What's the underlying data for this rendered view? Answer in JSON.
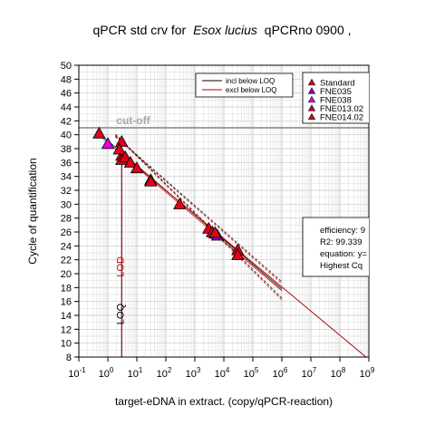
{
  "chart_data": {
    "type": "scatter",
    "title_plain": "qPCR std crv for",
    "title_species": "Esox lucius",
    "title_suffix": "qPCRno 0900 ,",
    "xlabel": "target-eDNA in extract. (copy/qPCR-reaction)",
    "ylabel": "Cycle of quantification",
    "x_scale": "log10",
    "xlim": [
      0.1,
      1000000000
    ],
    "ylim": [
      8,
      50
    ],
    "x_ticks": [
      {
        "base": "10",
        "exp": "-1"
      },
      {
        "base": "10",
        "exp": "0"
      },
      {
        "base": "10",
        "exp": "1"
      },
      {
        "base": "10",
        "exp": "2"
      },
      {
        "base": "10",
        "exp": "3"
      },
      {
        "base": "10",
        "exp": "4"
      },
      {
        "base": "10",
        "exp": "5"
      },
      {
        "base": "10",
        "exp": "6"
      },
      {
        "base": "10",
        "exp": "7"
      },
      {
        "base": "10",
        "exp": "8"
      },
      {
        "base": "10",
        "exp": "9"
      }
    ],
    "y_ticks": [
      "8",
      "10",
      "12",
      "14",
      "16",
      "18",
      "20",
      "22",
      "24",
      "26",
      "28",
      "30",
      "32",
      "34",
      "36",
      "38",
      "40",
      "42",
      "44",
      "46",
      "48",
      "50"
    ],
    "grid": true,
    "cutoff": {
      "label": "cut-off",
      "y": 41
    },
    "lod": {
      "label": "LOD",
      "x": 3
    },
    "loq": {
      "label": "LOQ",
      "x": 3
    },
    "lines": [
      {
        "name": "incl below LOQ",
        "color": "#000000"
      },
      {
        "name": "excl below LOQ",
        "color": "#b30000"
      }
    ],
    "line_points": {
      "x": [
        0.5,
        1000000
      ],
      "y": [
        40.2,
        17.8
      ]
    },
    "regression": {
      "x": [
        3,
        800000000
      ],
      "y": [
        37.3,
        8.0
      ]
    },
    "legend_position": "top-right",
    "series": [
      {
        "name": "Standard",
        "color": "#e0001a",
        "x": [
          0.5,
          3,
          3,
          3,
          2.5,
          4,
          6,
          10,
          30,
          30,
          300,
          3000,
          30000,
          30000
        ],
        "y": [
          40.2,
          39.0,
          37.0,
          36.4,
          37.9,
          36.8,
          36.0,
          35.2,
          33.5,
          33.3,
          30.0,
          26.5,
          23.4,
          22.7
        ]
      },
      {
        "name": "FNE035",
        "color": "#8a00c8",
        "x": [
          5000,
          6000
        ],
        "y": [
          25.8,
          25.5
        ]
      },
      {
        "name": "FNE038",
        "color": "#e800e8",
        "x": [
          1
        ],
        "y": [
          38.7
        ]
      },
      {
        "name": "FNE013.02",
        "color": "#c4003a",
        "x": [
          4000
        ],
        "y": [
          26.0
        ]
      },
      {
        "name": "FNE014.02",
        "color": "#cc1010",
        "x": [
          5000
        ],
        "y": [
          25.9
        ]
      }
    ],
    "stats_box": [
      "efficiency: 9",
      "R2: 99.339",
      "equation: y=",
      "Highest Cq"
    ]
  }
}
